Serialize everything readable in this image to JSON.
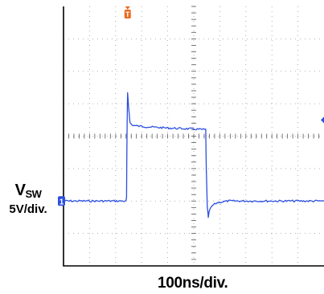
{
  "chart_data": {
    "type": "line",
    "title": "",
    "trace_color": "#2b4fe0",
    "trigger_color": "#ea6a1e",
    "ylabel": {
      "symbol": "V",
      "subscript": "SW",
      "scale": "5V/div."
    },
    "xlabel": "100ns/div.",
    "x_unit": "div",
    "y_unit": "div",
    "xlim": [
      0,
      10
    ],
    "ylim": [
      -4,
      4
    ],
    "grid": true,
    "channel_marker": "1",
    "trigger_marker": "T",
    "series": [
      {
        "x": [
          0,
          2.4,
          2.42,
          2.44,
          2.46,
          2.5,
          2.55,
          2.62,
          2.75,
          3.0,
          4.0,
          5.0,
          5.46,
          5.48,
          5.52,
          5.56,
          5.6,
          5.7,
          5.9,
          6.3,
          10
        ],
        "y": [
          -2.0,
          -2.0,
          -1.9,
          0.3,
          1.35,
          0.9,
          0.42,
          0.35,
          0.32,
          0.3,
          0.25,
          0.22,
          0.2,
          -1.0,
          -2.2,
          -2.5,
          -2.3,
          -2.15,
          -2.05,
          -2.0,
          -2.0
        ]
      }
    ]
  }
}
